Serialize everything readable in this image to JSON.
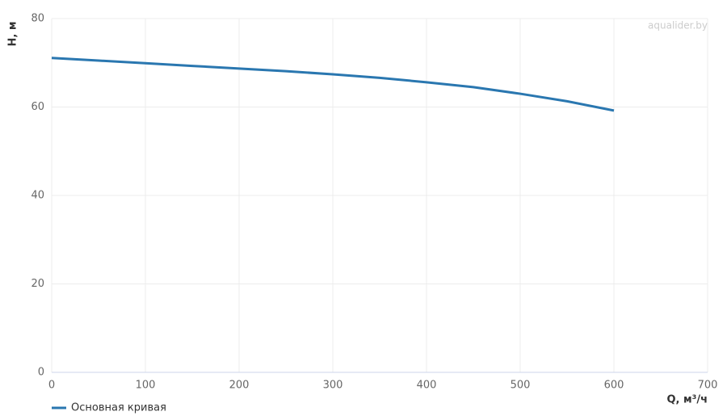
{
  "chart_data": {
    "type": "line",
    "x": [
      0,
      50,
      100,
      150,
      200,
      250,
      300,
      350,
      400,
      450,
      500,
      550,
      600
    ],
    "series": [
      {
        "name": "Основная кривая",
        "color": "#2a77b0",
        "values": [
          71.1,
          70.5,
          69.9,
          69.3,
          68.7,
          68.1,
          67.4,
          66.6,
          65.6,
          64.5,
          63.0,
          61.3,
          59.2
        ]
      }
    ],
    "xlim": [
      0,
      700
    ],
    "xticks": [
      0,
      100,
      200,
      300,
      400,
      500,
      600,
      700
    ],
    "ylim": [
      0,
      80
    ],
    "yticks": [
      0,
      20,
      40,
      60,
      80
    ],
    "xlabel": "Q, м³/ч",
    "ylabel": "H, м",
    "watermark": "aqualider.by",
    "grid": true,
    "legend": "bottom-left"
  }
}
